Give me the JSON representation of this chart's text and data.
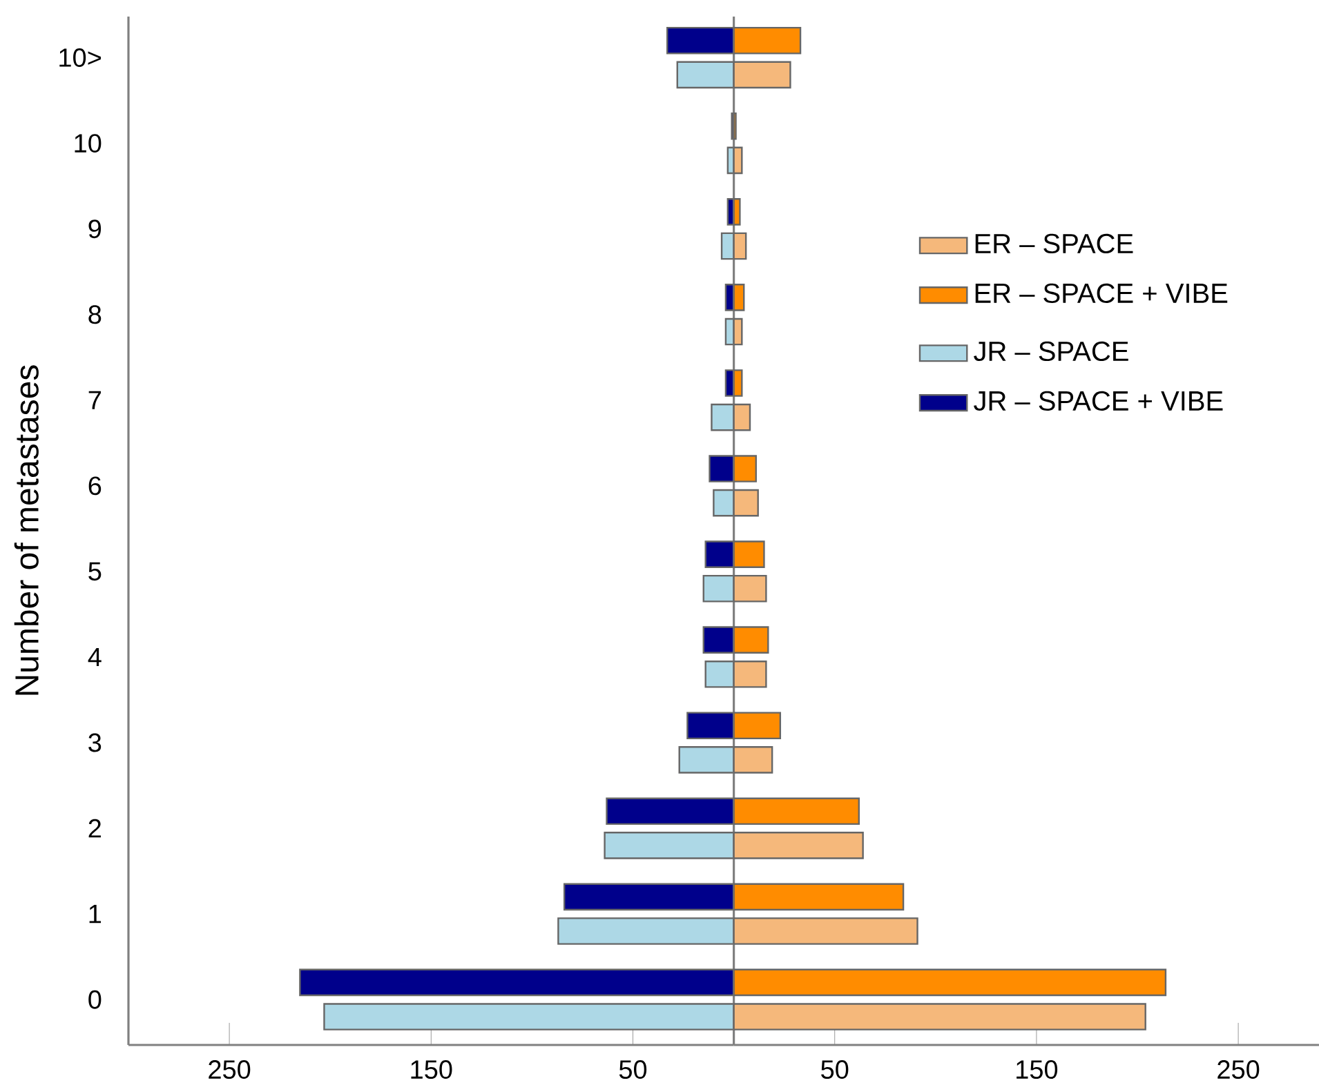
{
  "chart_data": [
    {
      "type": "bar",
      "orientation": "horizontal",
      "ylabel": "Number of metastases",
      "categories": [
        "10>",
        "10",
        "9",
        "8",
        "7",
        "6",
        "5",
        "4",
        "3",
        "2",
        "1",
        "0"
      ],
      "series": [
        {
          "name": "JR – SPACE",
          "color": "#add8e6",
          "values": [
            -28,
            -3,
            -6,
            -4,
            -11,
            -10,
            -15,
            -14,
            -27,
            -64,
            -87,
            -203
          ]
        },
        {
          "name": "JR – SPACE + VIBE",
          "color": "#00008b",
          "values": [
            -33,
            -1,
            -3,
            -4,
            -4,
            -12,
            -14,
            -15,
            -23,
            -63,
            -84,
            -215
          ]
        }
      ],
      "xlim": [
        -300,
        0
      ],
      "xticks": [
        {
          "value": -250,
          "label": "250"
        },
        {
          "value": -150,
          "label": "150"
        },
        {
          "value": -50,
          "label": "50"
        }
      ],
      "legend": "right"
    },
    {
      "type": "bar",
      "orientation": "horizontal",
      "categories": [
        null,
        null,
        null,
        null,
        null,
        null,
        null,
        null,
        null,
        null,
        null,
        null
      ],
      "series": [
        {
          "name": "ER – SPACE",
          "color": "#f5b87b",
          "values": [
            28,
            4,
            6,
            4,
            8,
            12,
            16,
            16,
            19,
            64,
            91,
            204
          ]
        },
        {
          "name": "ER – SPACE + VIBE",
          "color": "#ff8c00",
          "values": [
            33,
            1,
            3,
            5,
            4,
            11,
            15,
            17,
            23,
            62,
            84,
            214
          ]
        }
      ],
      "xlim": [
        0,
        290
      ],
      "xticks": [
        50,
        150,
        250
      ],
      "tick_labels": "x",
      "legend": "right"
    }
  ]
}
